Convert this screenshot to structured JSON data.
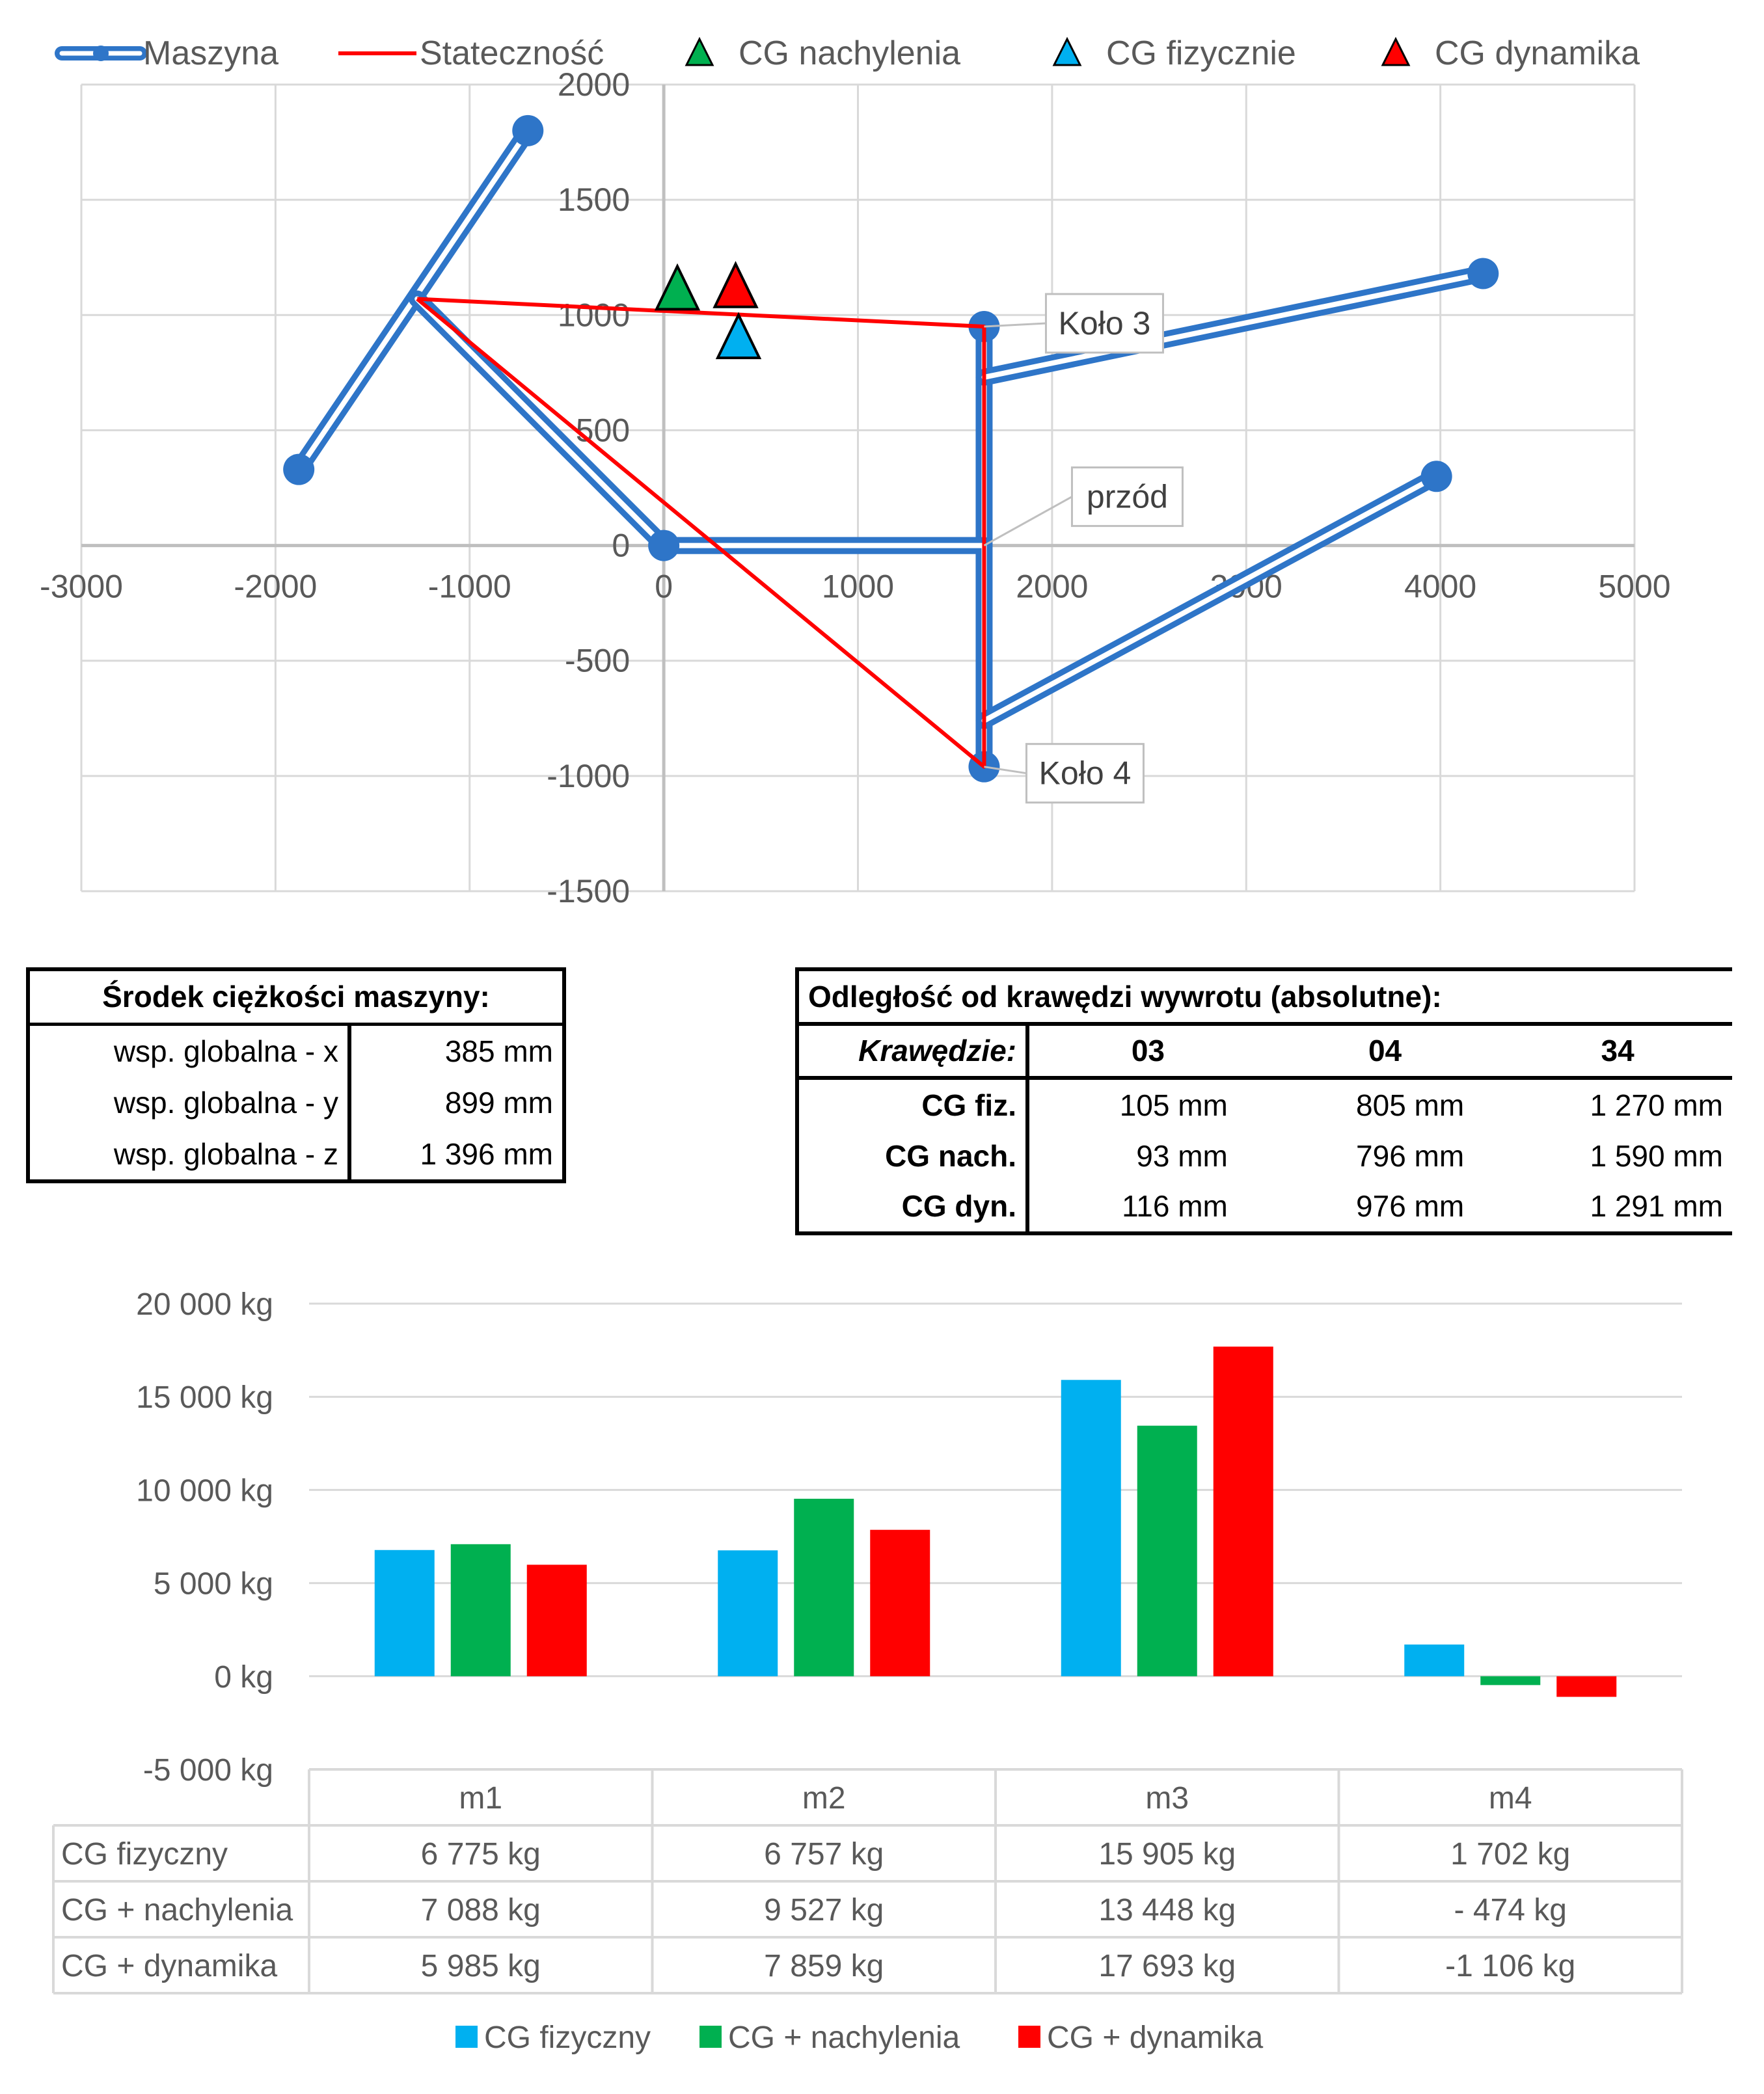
{
  "chart_data": [
    {
      "type": "scatter",
      "legend_position": "top",
      "xlim": [
        -3000,
        5000
      ],
      "ylim": [
        -1500,
        2000
      ],
      "xticks": [
        -3000,
        -2000,
        -1000,
        0,
        1000,
        2000,
        3000,
        4000,
        5000
      ],
      "yticks": [
        2000,
        1500,
        1000,
        500,
        0,
        -500,
        -1000,
        -1500
      ],
      "grid": true,
      "colors": {
        "maszyna": "#2e75c8",
        "statecznosc": "#ff0000",
        "cg_nach": "#00b050",
        "cg_fiz": "#00b0f0",
        "cg_dyn": "#ff0000"
      },
      "legend": [
        "Maszyna",
        "Stateczność",
        "CG nachylenia",
        "CG fizycznie",
        "CG dynamika"
      ],
      "series": [
        {
          "name": "Maszyna",
          "kind": "polyline-double",
          "x": [
            -1880,
            -700
          ],
          "y": [
            330,
            1800
          ]
        },
        {
          "name": "Maszyna",
          "kind": "polyline-double",
          "x": [
            -1270,
            0,
            1650,
            1650
          ],
          "y": [
            1070,
            0,
            0,
            950
          ]
        },
        {
          "name": "Maszyna",
          "kind": "polyline-double",
          "x": [
            0,
            1650,
            1650
          ],
          "y": [
            0,
            0,
            -960
          ]
        },
        {
          "name": "Maszyna",
          "kind": "polyline-double",
          "x": [
            1650,
            4220
          ],
          "y": [
            730,
            1180
          ]
        },
        {
          "name": "Maszyna",
          "kind": "polyline-double",
          "x": [
            1650,
            3980
          ],
          "y": [
            -760,
            300
          ]
        },
        {
          "name": "Stateczność",
          "kind": "polyline",
          "x": [
            -1270,
            1650,
            1650,
            -1270
          ],
          "y": [
            1070,
            950,
            -960,
            1070
          ]
        },
        {
          "name": "CG nachylenia",
          "kind": "triangle",
          "x": [
            70
          ],
          "y": [
            1110
          ]
        },
        {
          "name": "CG dynamika",
          "kind": "triangle",
          "x": [
            370
          ],
          "y": [
            1120
          ]
        },
        {
          "name": "CG fizycznie",
          "kind": "triangle",
          "x": [
            385
          ],
          "y": [
            899
          ]
        }
      ],
      "markers": [
        {
          "x": -700,
          "y": 1800
        },
        {
          "x": -1880,
          "y": 330
        },
        {
          "x": 0,
          "y": 0
        },
        {
          "x": 1650,
          "y": 950
        },
        {
          "x": 1650,
          "y": -960
        },
        {
          "x": 4220,
          "y": 1180
        },
        {
          "x": 3980,
          "y": 300
        }
      ],
      "annotations": [
        {
          "text": "Koło 3",
          "x": 1650,
          "y": 950
        },
        {
          "text": "przód",
          "x": 1650,
          "y": 0
        },
        {
          "text": "Koło 4",
          "x": 1650,
          "y": -960
        }
      ]
    },
    {
      "type": "bar",
      "categories": [
        "m1",
        "m2",
        "m3",
        "m4"
      ],
      "ylim": [
        -5000,
        20000
      ],
      "yticks": [
        20000,
        15000,
        10000,
        5000,
        0,
        -5000
      ],
      "ytick_labels": [
        "20 000 kg",
        "15 000 kg",
        "10 000 kg",
        "5 000 kg",
        "0 kg",
        "-5 000 kg"
      ],
      "grid": true,
      "legend_position": "bottom",
      "series": [
        {
          "name": "CG fizyczny",
          "color": "#00b0f0",
          "values": [
            6775,
            6757,
            15905,
            1702
          ],
          "labels": [
            "6 775 kg",
            "6 757 kg",
            "15 905 kg",
            "1 702 kg"
          ]
        },
        {
          "name": "CG + nachylenia",
          "color": "#00b050",
          "values": [
            7088,
            9527,
            13448,
            -474
          ],
          "labels": [
            "7 088 kg",
            "9 527 kg",
            "13 448 kg",
            "- 474 kg"
          ]
        },
        {
          "name": "CG + dynamika",
          "color": "#ff0000",
          "values": [
            5985,
            7859,
            17693,
            -1106
          ],
          "labels": [
            "5 985 kg",
            "7 859 kg",
            "17 693 kg",
            "-1 106 kg"
          ]
        }
      ]
    }
  ],
  "cg_table": {
    "title": "Środek ciężkości maszyny:",
    "rows": [
      {
        "label": "wsp. globalna - x",
        "value": "385 mm"
      },
      {
        "label": "wsp. globalna - y",
        "value": "899 mm"
      },
      {
        "label": "wsp. globalna - z",
        "value": "1 396 mm"
      }
    ]
  },
  "dist_table": {
    "title": "Odległość od krawędzi wywrotu (absolutne):",
    "header_label": "Krawędzie:",
    "columns": [
      "03",
      "04",
      "34"
    ],
    "rows": [
      {
        "label": "CG fiz.",
        "values": [
          "105 mm",
          "805 mm",
          "1 270 mm"
        ]
      },
      {
        "label": "CG nach.",
        "values": [
          "93 mm",
          "796 mm",
          "1 590 mm"
        ]
      },
      {
        "label": "CG dyn.",
        "values": [
          "116 mm",
          "976 mm",
          "1 291 mm"
        ]
      }
    ]
  }
}
